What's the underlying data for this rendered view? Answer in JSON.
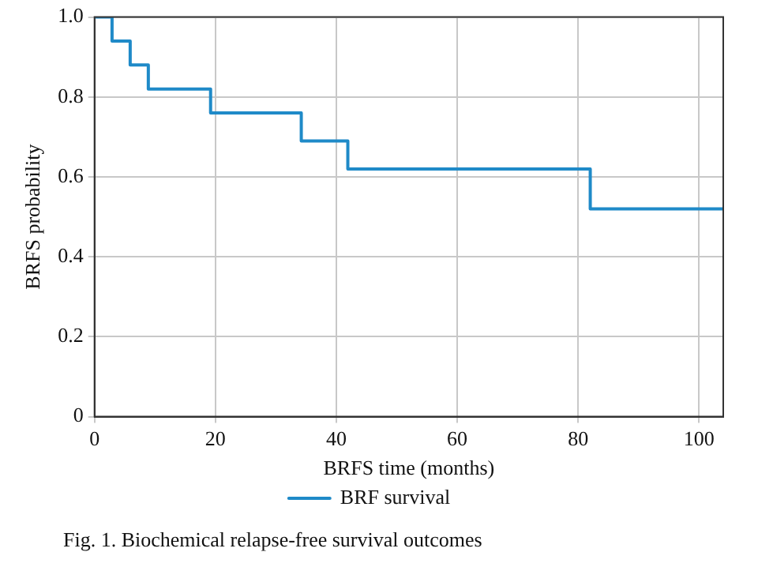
{
  "chart_data": {
    "type": "step",
    "xlabel": "BRFS time (months)",
    "ylabel": "BRFS probability",
    "annotations": [
      "Fig. 1. Biochemical relapse-free survival outcomes"
    ],
    "series": [
      {
        "name": "BRF survival",
        "color": "#1f8ac8",
        "x": [
          0,
          2.9,
          5.9,
          8.9,
          19.2,
          34.2,
          41.9,
          82,
          104
        ],
        "values": [
          1,
          0.94,
          0.88,
          0.82,
          0.76,
          0.69,
          0.62,
          0.52,
          0.52
        ]
      }
    ],
    "xlim": [
      0,
      104
    ],
    "xticks": [
      0,
      20,
      40,
      60,
      80,
      100
    ],
    "ylim": [
      0,
      1
    ],
    "yticks": [
      0,
      0.2,
      0.4,
      0.6,
      0.8,
      {
        "value": 1,
        "label": "1.0"
      }
    ],
    "grid": true,
    "legend": "bottom",
    "marker": "none",
    "line_style": "solid"
  }
}
